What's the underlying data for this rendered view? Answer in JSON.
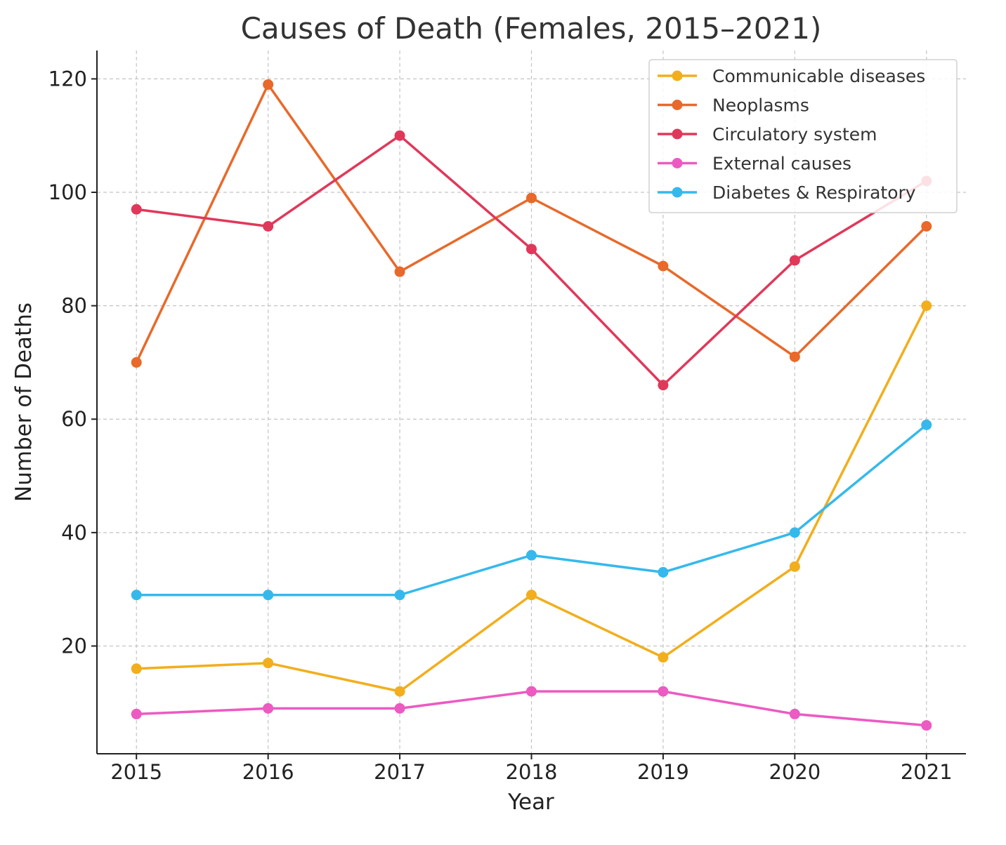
{
  "chart_data": {
    "type": "line",
    "title": "Causes of Death (Females, 2015–2021)",
    "xlabel": "Year",
    "ylabel": "Number of Deaths",
    "x": [
      2015,
      2016,
      2017,
      2018,
      2019,
      2020,
      2021
    ],
    "x_tick_labels": [
      "2015",
      "2016",
      "2017",
      "2018",
      "2019",
      "2020",
      "2021"
    ],
    "y_ticks": [
      20,
      40,
      60,
      80,
      100,
      120
    ],
    "y_tick_labels": [
      "20",
      "40",
      "60",
      "80",
      "100",
      "120"
    ],
    "xlim": [
      2014.7,
      2021.3
    ],
    "ylim": [
      1,
      125
    ],
    "grid": true,
    "legend_position": "top-right",
    "series": [
      {
        "name": "Communicable diseases",
        "color": "#f2ae1c",
        "values": [
          16,
          17,
          12,
          29,
          18,
          34,
          80
        ]
      },
      {
        "name": "Neoplasms",
        "color": "#e8692a",
        "values": [
          70,
          119,
          86,
          99,
          87,
          71,
          94
        ]
      },
      {
        "name": "Circulatory system",
        "color": "#e0385a",
        "values": [
          97,
          94,
          110,
          90,
          66,
          88,
          102
        ]
      },
      {
        "name": "External causes",
        "color": "#ec5ac2",
        "values": [
          8,
          9,
          9,
          12,
          12,
          8,
          6
        ]
      },
      {
        "name": "Diabetes & Respiratory",
        "color": "#35b9ec",
        "values": [
          29,
          29,
          29,
          36,
          33,
          40,
          59
        ]
      }
    ]
  }
}
